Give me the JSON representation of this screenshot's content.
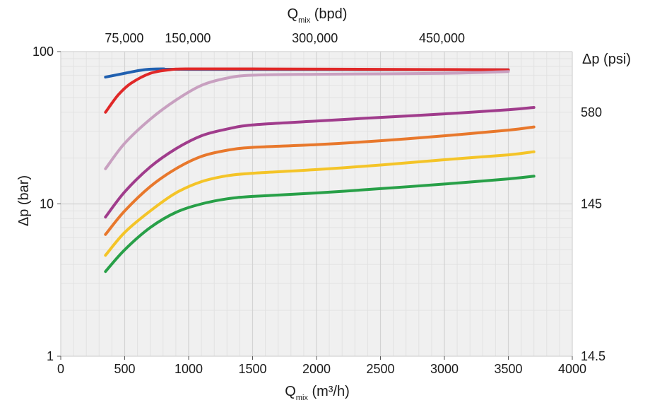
{
  "chart_data": {
    "type": "line",
    "title": "",
    "xlabel": {
      "main": "Q",
      "sub": "mix",
      "unit": " (m³/h)"
    },
    "x2label": {
      "main": "Q",
      "sub": "mix",
      "unit": " (bpd)"
    },
    "ylabel": "Δp (bar)",
    "y2label": "Δp (psi)",
    "xlim": [
      0,
      4000
    ],
    "ylim": [
      1,
      100
    ],
    "yscale": "log",
    "grid": true,
    "x_ticks": [
      0,
      500,
      1000,
      1500,
      2000,
      2500,
      3000,
      3500,
      4000
    ],
    "x_tick_labels": [
      "0",
      "500",
      "1000",
      "1500",
      "2000",
      "2500",
      "3000",
      "3500",
      "4000"
    ],
    "y_ticks": [
      1,
      10,
      100
    ],
    "y_tick_labels": [
      "1",
      "10",
      "100"
    ],
    "x2_ticks": [
      {
        "label": "75,000",
        "value": 75000
      },
      {
        "label": "150,000",
        "value": 150000
      },
      {
        "label": "300,000",
        "value": 300000
      },
      {
        "label": "450,000",
        "value": 450000
      }
    ],
    "y2_ticks": [
      {
        "label": "580",
        "value": 580
      },
      {
        "label": "145",
        "value": 145
      },
      {
        "label": "14.5",
        "value": 14.5
      }
    ],
    "series": [
      {
        "color": "#2060b0",
        "x": [
          350,
          500,
          650,
          800,
          1000,
          3500
        ],
        "y": [
          68,
          72,
          76,
          77,
          76.5,
          76
        ]
      },
      {
        "color": "#e02828",
        "x": [
          350,
          450,
          550,
          700,
          850,
          1000,
          1500,
          2500,
          3500
        ],
        "y": [
          40,
          52,
          62,
          72,
          76,
          77,
          77,
          76.5,
          76
        ]
      },
      {
        "color": "#c8a0c0",
        "x": [
          350,
          500,
          700,
          900,
          1100,
          1300,
          1500,
          2000,
          3000,
          3500
        ],
        "y": [
          17,
          25,
          36,
          48,
          60,
          67,
          70,
          71,
          72,
          74
        ]
      },
      {
        "color": "#a03c8c",
        "x": [
          350,
          500,
          700,
          900,
          1100,
          1300,
          1500,
          2000,
          2500,
          3000,
          3500,
          3700
        ],
        "y": [
          8.2,
          12,
          17.5,
          23,
          28,
          31,
          33,
          35,
          37,
          39,
          41.5,
          43
        ]
      },
      {
        "color": "#e8782c",
        "x": [
          350,
          500,
          700,
          900,
          1100,
          1300,
          1500,
          2000,
          2500,
          3000,
          3500,
          3700
        ],
        "y": [
          6.3,
          9,
          13,
          17,
          20.5,
          22.5,
          23.5,
          24.5,
          26,
          28,
          30.5,
          32
        ]
      },
      {
        "color": "#f4c428",
        "x": [
          350,
          500,
          700,
          900,
          1100,
          1300,
          1500,
          2000,
          2500,
          3000,
          3500,
          3700
        ],
        "y": [
          4.6,
          6.5,
          9,
          11.8,
          14,
          15.3,
          15.9,
          16.8,
          18,
          19.5,
          21,
          22
        ]
      },
      {
        "color": "#28a048",
        "x": [
          350,
          500,
          700,
          900,
          1100,
          1300,
          1500,
          2000,
          2500,
          3000,
          3500,
          3700
        ],
        "y": [
          3.6,
          5,
          7,
          8.8,
          10,
          10.8,
          11.2,
          11.8,
          12.6,
          13.5,
          14.6,
          15.2
        ]
      }
    ]
  }
}
